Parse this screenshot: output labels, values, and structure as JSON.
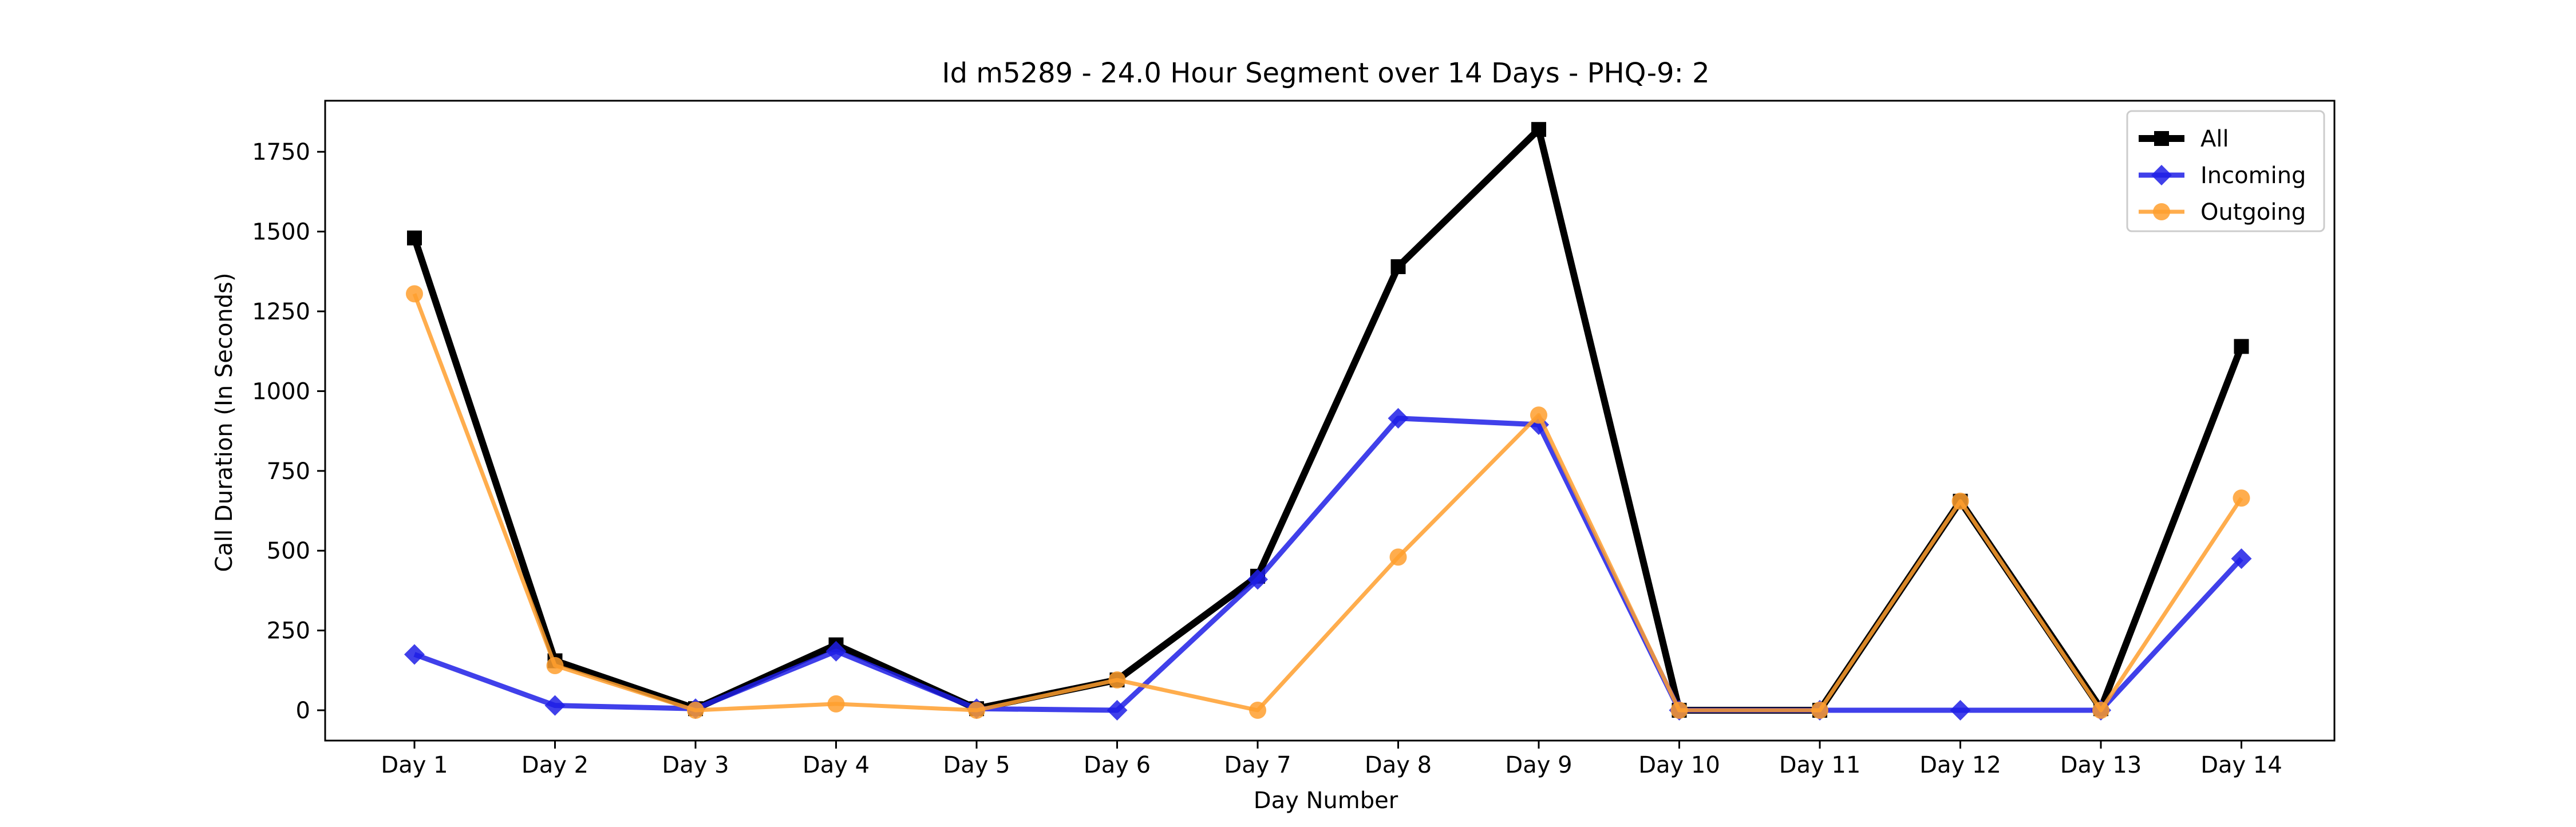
{
  "chart_data": {
    "type": "line",
    "title": "Id m5289 - 24.0 Hour Segment over 14 Days - PHQ-9: 2",
    "xlabel": "Day Number",
    "ylabel": "Call Duration (In Seconds)",
    "categories": [
      "Day 1",
      "Day 2",
      "Day 3",
      "Day 4",
      "Day 5",
      "Day 6",
      "Day 7",
      "Day 8",
      "Day 9",
      "Day 10",
      "Day 11",
      "Day 12",
      "Day 13",
      "Day 14"
    ],
    "ylim": [
      -95,
      1910
    ],
    "yticks": [
      0,
      250,
      500,
      750,
      1000,
      1250,
      1500,
      1750
    ],
    "grid": false,
    "legend_position": "top-right",
    "series": [
      {
        "name": "All",
        "color": "#000000",
        "marker": "square",
        "values": [
          1480,
          155,
          5,
          205,
          5,
          95,
          420,
          1390,
          1820,
          0,
          0,
          655,
          5,
          1140
        ]
      },
      {
        "name": "Incoming",
        "color": "#1f1fe6",
        "marker": "diamond",
        "values": [
          175,
          15,
          5,
          185,
          5,
          0,
          410,
          915,
          895,
          0,
          0,
          0,
          0,
          475
        ]
      },
      {
        "name": "Outgoing",
        "color": "#ff9f2e",
        "marker": "circle",
        "values": [
          1305,
          140,
          0,
          20,
          0,
          95,
          0,
          480,
          925,
          0,
          0,
          655,
          0,
          665
        ]
      }
    ]
  }
}
